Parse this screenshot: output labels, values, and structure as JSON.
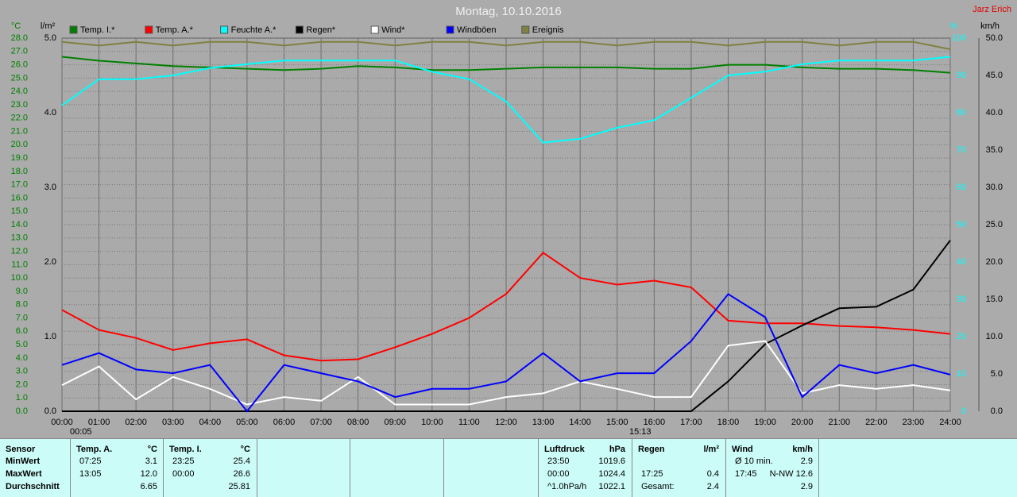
{
  "chart_data": {
    "type": "line",
    "title": "Montag, 10.10.2016",
    "subtitle": "Jarz Erich",
    "axis_labels": {
      "y": "°C",
      "y2": "l/m²",
      "y3": "%",
      "y4": "km/h"
    },
    "annotations": [
      "00:05",
      "15:13"
    ],
    "x": [
      0,
      1,
      2,
      3,
      4,
      5,
      6,
      7,
      8,
      9,
      10,
      11,
      12,
      13,
      14,
      15,
      16,
      17,
      18,
      19,
      20,
      21,
      22,
      23,
      24
    ],
    "xlim": [
      0,
      24
    ],
    "xticks": [
      {
        "value": 0,
        "label": "00:00"
      },
      {
        "value": 1,
        "label": "01:00"
      },
      {
        "value": 2,
        "label": "02:00"
      },
      {
        "value": 3,
        "label": "03:00"
      },
      {
        "value": 4,
        "label": "04:00"
      },
      {
        "value": 5,
        "label": "05:00"
      },
      {
        "value": 6,
        "label": "06:00"
      },
      {
        "value": 7,
        "label": "07:00"
      },
      {
        "value": 8,
        "label": "08:00"
      },
      {
        "value": 9,
        "label": "09:00"
      },
      {
        "value": 10,
        "label": "10:00"
      },
      {
        "value": 11,
        "label": "11:00"
      },
      {
        "value": 12,
        "label": "12:00"
      },
      {
        "value": 13,
        "label": "13:00"
      },
      {
        "value": 14,
        "label": "14:00"
      },
      {
        "value": 15,
        "label": "15:00"
      },
      {
        "value": 16,
        "label": "16:00"
      },
      {
        "value": 17,
        "label": "17:00"
      },
      {
        "value": 18,
        "label": "18:00"
      },
      {
        "value": 19,
        "label": "19:00"
      },
      {
        "value": 20,
        "label": "20:00"
      },
      {
        "value": 21,
        "label": "21:00"
      },
      {
        "value": 22,
        "label": "22:00"
      },
      {
        "value": 23,
        "label": "23:00"
      },
      {
        "value": 24,
        "label": "24:00"
      }
    ],
    "ylim": [
      0,
      28
    ],
    "yticks": [
      {
        "value": 0,
        "label": "0.0"
      },
      {
        "value": 1,
        "label": "1.0"
      },
      {
        "value": 2,
        "label": "2.0"
      },
      {
        "value": 3,
        "label": "3.0"
      },
      {
        "value": 4,
        "label": "4.0"
      },
      {
        "value": 5,
        "label": "5.0"
      },
      {
        "value": 6,
        "label": "6.0"
      },
      {
        "value": 7,
        "label": "7.0"
      },
      {
        "value": 8,
        "label": "8.0"
      },
      {
        "value": 9,
        "label": "9.0"
      },
      {
        "value": 10,
        "label": "10.0"
      },
      {
        "value": 11,
        "label": "11.0"
      },
      {
        "value": 12,
        "label": "12.0"
      },
      {
        "value": 13,
        "label": "13.0"
      },
      {
        "value": 14,
        "label": "14.0"
      },
      {
        "value": 15,
        "label": "15.0"
      },
      {
        "value": 16,
        "label": "16.0"
      },
      {
        "value": 17,
        "label": "17.0"
      },
      {
        "value": 18,
        "label": "18.0"
      },
      {
        "value": 19,
        "label": "19.0"
      },
      {
        "value": 20,
        "label": "20.0"
      },
      {
        "value": 21,
        "label": "21.0"
      },
      {
        "value": 22,
        "label": "22.0"
      },
      {
        "value": 23,
        "label": "23.0"
      },
      {
        "value": 24,
        "label": "24.0"
      },
      {
        "value": 25,
        "label": "25.0"
      },
      {
        "value": 26,
        "label": "26.0"
      },
      {
        "value": 27,
        "label": "27.0"
      },
      {
        "value": 28,
        "label": "28.0"
      }
    ],
    "y2lim": [
      0,
      5
    ],
    "y2ticks": [
      {
        "value": 0,
        "label": "0.0"
      },
      {
        "value": 1,
        "label": "1.0"
      },
      {
        "value": 2,
        "label": "2.0"
      },
      {
        "value": 3,
        "label": "3.0"
      },
      {
        "value": 4,
        "label": "4.0"
      },
      {
        "value": 5,
        "label": "5.0"
      }
    ],
    "y3lim": [
      0,
      100
    ],
    "y3ticks": [
      0,
      10,
      20,
      30,
      40,
      50,
      60,
      70,
      80,
      90,
      100
    ],
    "y4lim": [
      0,
      50
    ],
    "y4ticks": [
      {
        "value": 0,
        "label": "0.0"
      },
      {
        "value": 5,
        "label": "5.0"
      },
      {
        "value": 10,
        "label": "10.0"
      },
      {
        "value": 15,
        "label": "15.0"
      },
      {
        "value": 20,
        "label": "20.0"
      },
      {
        "value": 25,
        "label": "25.0"
      },
      {
        "value": 30,
        "label": "30.0"
      },
      {
        "value": 35,
        "label": "35.0"
      },
      {
        "value": 40,
        "label": "40.0"
      },
      {
        "value": 45,
        "label": "45.0"
      },
      {
        "value": 50,
        "label": "50.0"
      }
    ],
    "grid": true,
    "series": [
      {
        "name": "Temp. I.*",
        "color": "#008000",
        "axis": "y",
        "values": [
          26.6,
          26.3,
          26.1,
          25.9,
          25.8,
          25.7,
          25.6,
          25.7,
          25.9,
          25.8,
          25.6,
          25.6,
          25.7,
          25.8,
          25.8,
          25.8,
          25.7,
          25.7,
          26.0,
          26.0,
          25.8,
          25.7,
          25.7,
          25.6,
          25.4
        ]
      },
      {
        "name": "Temp. A.*",
        "color": "#ff0000",
        "axis": "y",
        "values": [
          7.6,
          6.1,
          5.5,
          4.6,
          5.1,
          5.4,
          4.2,
          3.8,
          3.9,
          4.8,
          5.8,
          7.0,
          8.8,
          11.9,
          10.0,
          9.5,
          9.8,
          9.3,
          6.8,
          6.6,
          6.6,
          6.4,
          6.3,
          6.1,
          5.8
        ]
      },
      {
        "name": "Feuchte A.*",
        "color": "#00ffff",
        "axis": "y3",
        "values": [
          82,
          89,
          89,
          90,
          92,
          93,
          94,
          94,
          94,
          94,
          91,
          89,
          83,
          72,
          73,
          76,
          78,
          84,
          90,
          91,
          93,
          94,
          94,
          94,
          95
        ]
      },
      {
        "name": "Regen*",
        "color": "#000000",
        "axis": "y2",
        "values": [
          0,
          0,
          0,
          0,
          0,
          0,
          0,
          0,
          0,
          0,
          0,
          0,
          0,
          0,
          0,
          0,
          0,
          0,
          0.4,
          0.9,
          1.15,
          1.38,
          1.4,
          1.63,
          2.29
        ]
      },
      {
        "name": "Wind*",
        "color": "#ffffff",
        "axis": "y4",
        "values": [
          3.5,
          6.0,
          1.6,
          4.6,
          3.0,
          0.9,
          1.9,
          1.4,
          4.6,
          0.9,
          0.9,
          0.9,
          1.9,
          2.4,
          4.0,
          3.0,
          1.9,
          1.9,
          8.8,
          9.4,
          2.4,
          3.5,
          3.0,
          3.5,
          2.8
        ]
      },
      {
        "name": "Windböen",
        "color": "#0000ff",
        "axis": "y4",
        "values": [
          6.2,
          7.8,
          5.6,
          5.1,
          6.2,
          0,
          6.2,
          5.1,
          4.0,
          1.9,
          3.0,
          3.0,
          4.0,
          7.8,
          4.0,
          5.1,
          5.1,
          9.4,
          15.7,
          12.6,
          1.9,
          6.2,
          5.1,
          6.2,
          4.9
        ]
      },
      {
        "name": "Ereignis",
        "color": "#808040",
        "axis": "y3",
        "values": [
          99,
          98,
          99,
          98,
          99,
          99,
          98,
          99,
          99,
          98,
          99,
          99,
          98,
          99,
          99,
          98,
          99,
          99,
          98,
          99,
          99,
          98,
          99,
          99,
          97
        ]
      }
    ]
  },
  "stats": {
    "row_labels": [
      "Sensor",
      "MinWert",
      "MaxWert",
      "Durchschnitt"
    ],
    "groups": [
      {
        "header": "Temp. A.",
        "unit": "°C",
        "rows": [
          [
            "07:25",
            "3.1"
          ],
          [
            "13:05",
            "12.0"
          ],
          [
            null,
            "6.65"
          ]
        ]
      },
      {
        "header": "Temp. I.",
        "unit": "°C",
        "rows": [
          [
            "23:25",
            "25.4"
          ],
          [
            "00:00",
            "26.6"
          ],
          [
            null,
            "25.81"
          ]
        ]
      },
      {
        "header": "Luftdruck",
        "unit": "hPa",
        "rows": [
          [
            "23:50",
            "1019.6"
          ],
          [
            "00:00",
            "1024.4"
          ],
          [
            "^1.0hPa/h",
            "1022.1"
          ]
        ]
      },
      {
        "header": "Regen",
        "unit": "l/m²",
        "rows": [
          [
            null,
            null
          ],
          [
            "17:25",
            "0.4"
          ],
          [
            "Gesamt:",
            "2.4"
          ]
        ]
      },
      {
        "header": "Wind",
        "unit": "km/h",
        "rows": [
          [
            "Ø 10 min.",
            "2.9"
          ],
          [
            "17:45",
            "N-NW 12.6"
          ],
          [
            null,
            "2.9"
          ]
        ]
      }
    ]
  }
}
